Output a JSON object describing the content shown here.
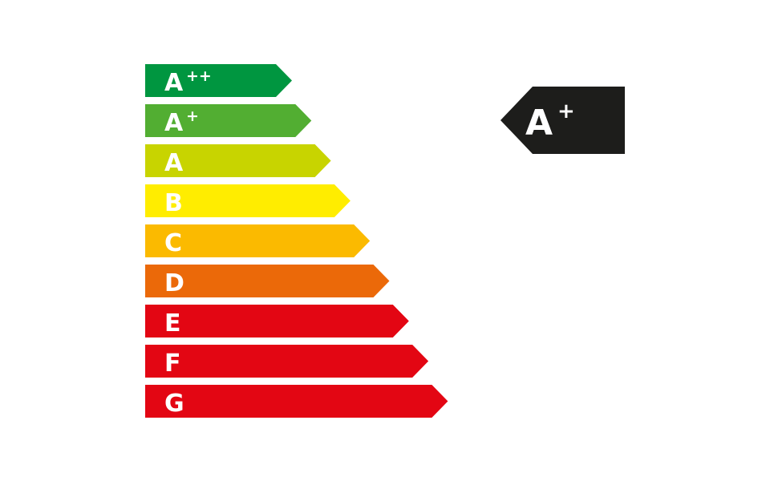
{
  "scale": [
    {
      "label": "A",
      "sup": "++",
      "color": "#009640"
    },
    {
      "label": "A",
      "sup": "+",
      "color": "#52ae32"
    },
    {
      "label": "A",
      "sup": "",
      "color": "#c8d400"
    },
    {
      "label": "B",
      "sup": "",
      "color": "#ffed00"
    },
    {
      "label": "C",
      "sup": "",
      "color": "#fbba00"
    },
    {
      "label": "D",
      "sup": "",
      "color": "#eb6909"
    },
    {
      "label": "E",
      "sup": "",
      "color": "#e30613"
    },
    {
      "label": "F",
      "sup": "",
      "color": "#e30613"
    },
    {
      "label": "G",
      "sup": "",
      "color": "#e30613"
    }
  ],
  "rating": {
    "label": "A",
    "sup": "+",
    "color": "#1d1d1b"
  }
}
